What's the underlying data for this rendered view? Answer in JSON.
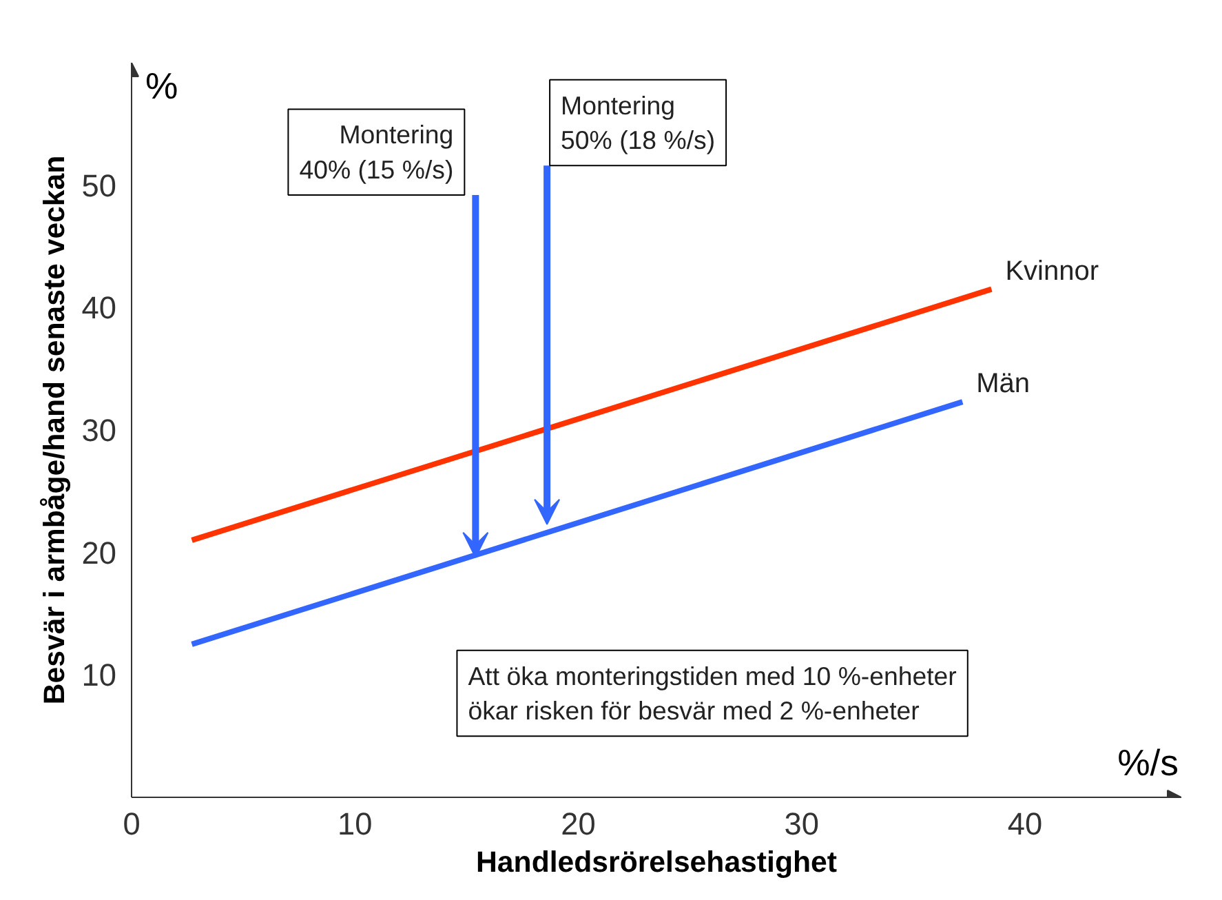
{
  "chart_data": {
    "type": "line",
    "xlabel": "Handledsrörelsehastighet",
    "ylabel": "Besvär i armbåge/hand senaste veckan",
    "x": [
      2.7,
      38.5
    ],
    "series": [
      {
        "name": "Kvinnor",
        "color": "#ff3300",
        "values": [
          21,
          41.5
        ]
      },
      {
        "name": "Män",
        "color": "#3366ff",
        "x": [
          2.7,
          37.2
        ],
        "values": [
          12.5,
          32.3
        ]
      }
    ],
    "xlim": [
      0,
      47
    ],
    "ylim": [
      0,
      60
    ],
    "xticks": [
      0,
      10,
      20,
      30,
      40
    ],
    "yticks": [
      10,
      20,
      30,
      40,
      50
    ],
    "grid": false,
    "marker": "none",
    "line_style": "solid",
    "annotations": [
      {
        "text": "Montering\n40% (15 %/s)",
        "x": 15.4,
        "y": 19.6
      },
      {
        "text": "Montering\n50% (18 %/s)",
        "x": 18.6,
        "y": 22.3
      },
      "Att öka monteringstiden med 10 %-enheter\nökar risken för besvär med 2 %-enheter",
      "%",
      "%/s"
    ]
  }
}
